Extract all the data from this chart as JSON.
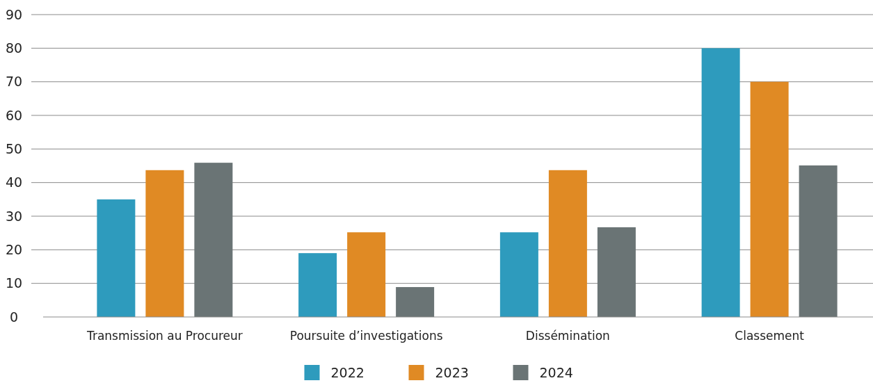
{
  "chart_data": {
    "type": "bar",
    "categories": [
      "Transmission au Procureur",
      "Poursuite d’investigations",
      "Dissémination",
      "Classement"
    ],
    "series": [
      {
        "name": "2022",
        "color": "#2e9bbd",
        "values": [
          35,
          19,
          25.2,
          80
        ]
      },
      {
        "name": "2023",
        "color": "#e08a24",
        "values": [
          43.7,
          25.2,
          43.7,
          70
        ]
      },
      {
        "name": "2024",
        "color": "#6a7475",
        "values": [
          45.9,
          8.9,
          26.7,
          45.1
        ]
      }
    ],
    "ylim": [
      0,
      90
    ],
    "yticks": [
      0,
      10,
      20,
      30,
      40,
      50,
      60,
      70,
      80,
      90
    ],
    "grid": "y",
    "legend": "bottom"
  }
}
